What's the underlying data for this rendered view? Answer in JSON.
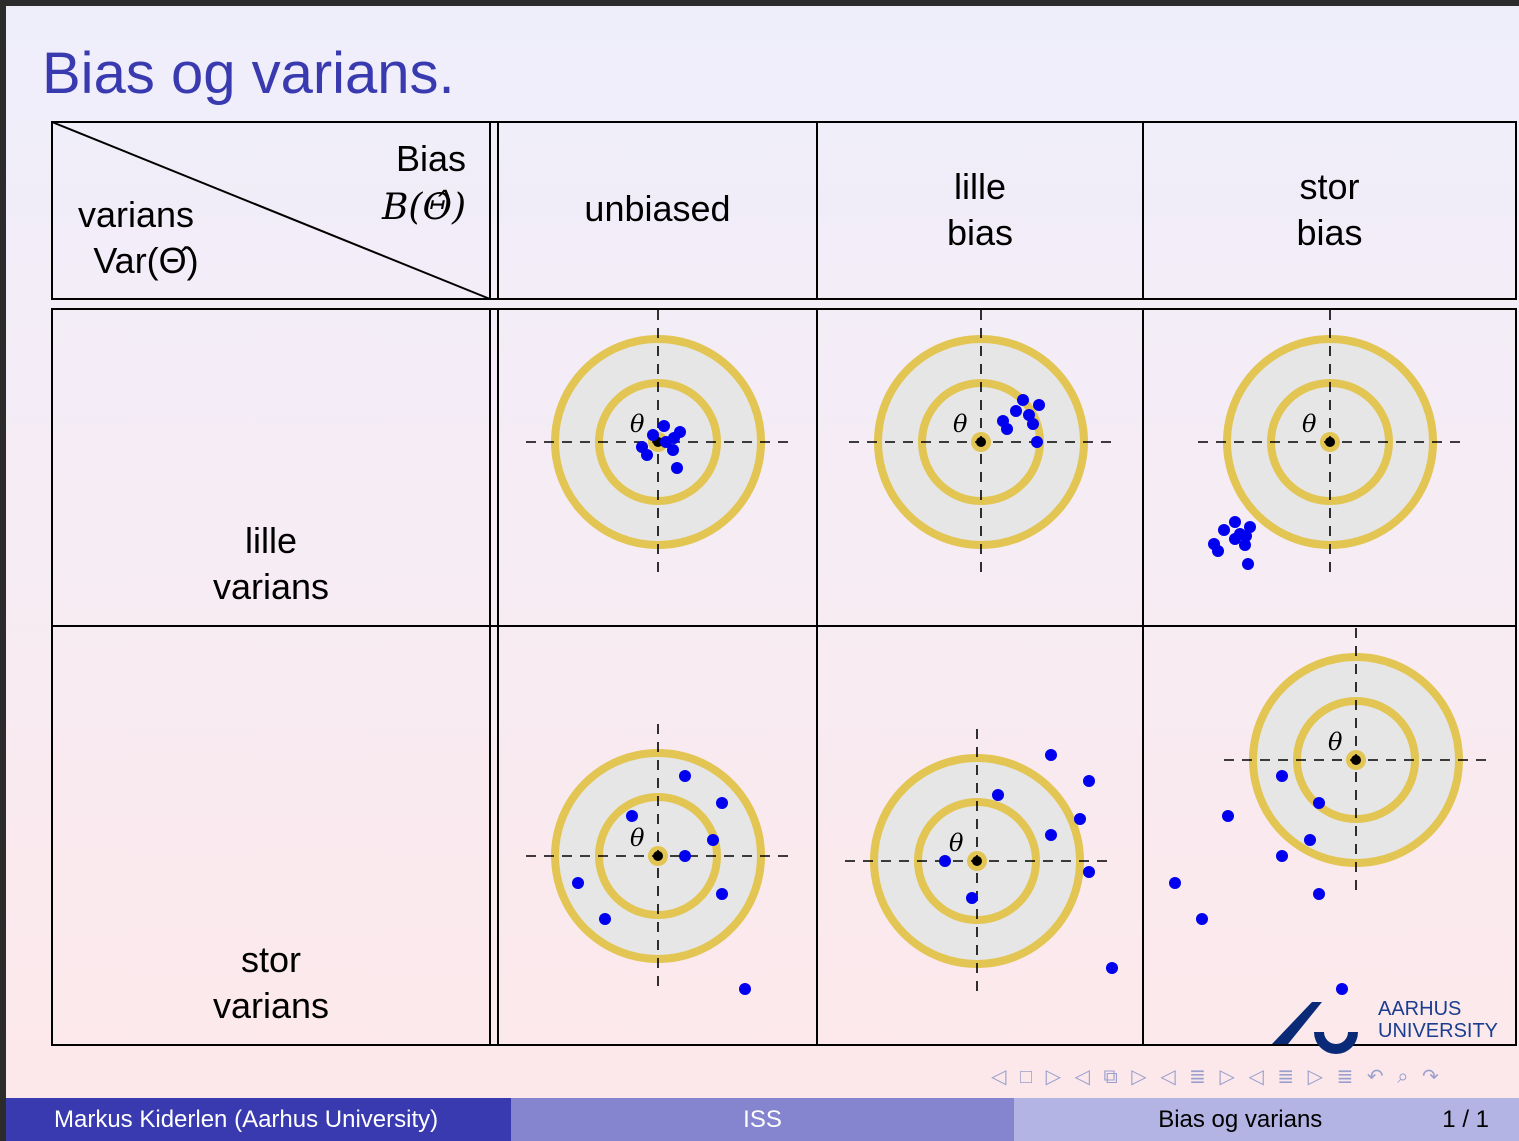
{
  "title": "Bias og varians.",
  "header": {
    "corner_bias_label": "Bias",
    "corner_bias_math": "B(Θ̂)",
    "corner_var_label": "varians",
    "corner_var_math": "Var(Θ̂)",
    "col1": "unbiased",
    "col2_line1": "lille",
    "col2_line2": "bias",
    "col3_line1": "stor",
    "col3_line2": "bias"
  },
  "rows": {
    "row1_line1": "lille",
    "row1_line2": "varians",
    "row2_line1": "stor",
    "row2_line2": "varians"
  },
  "theta_label": "θ",
  "colors": {
    "ring": "#e2c552",
    "target_fill": "#e6e6e6",
    "dot": "#0000ee",
    "title": "#3a3ab0"
  },
  "logo": {
    "line1": "AARHUS",
    "line2": "UNIVERSITY"
  },
  "nav_icons": "◁ □ ▷ ◁ ⧉ ▷ ◁ ≣ ▷ ◁ ≣ ▷ ≣ ↶ ⌕ ↷",
  "footer": {
    "author": "Markus Kiderlen  (Aarhus University)",
    "short_title": "ISS",
    "section": "Bias og varians",
    "page": "1 / 1"
  }
}
